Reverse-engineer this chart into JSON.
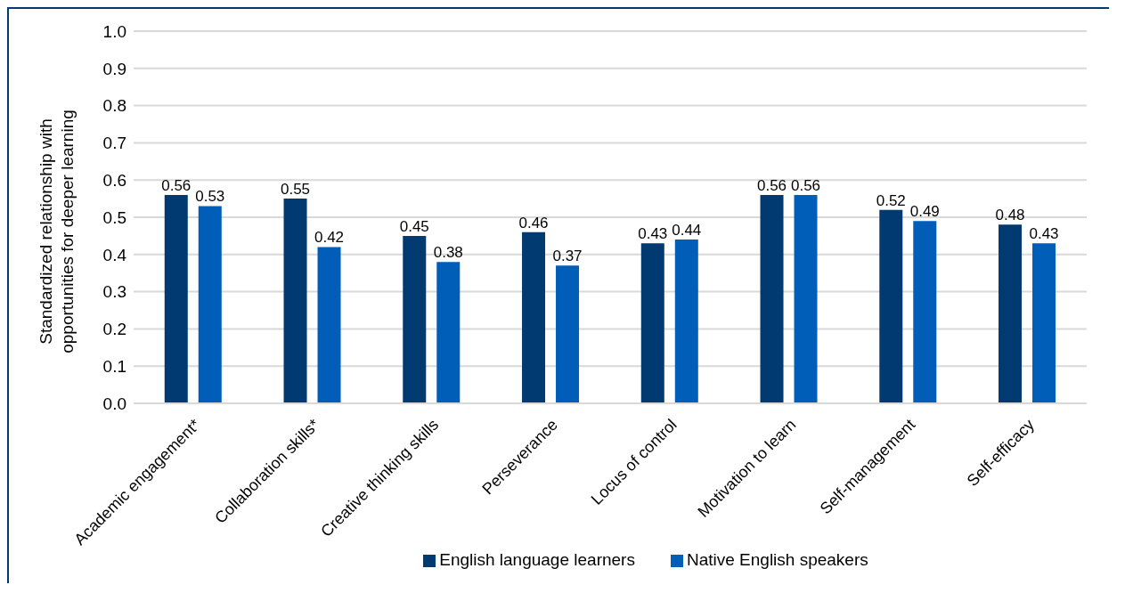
{
  "chart_data": {
    "type": "bar",
    "ylabel": "Standardized relationship with opportunities for deeper learning",
    "categories": [
      "Academic engagement*",
      "Collaboration skills*",
      "Creative thinking skills",
      "Perseverance",
      "Locus of control",
      "Motivation to learn",
      "Self-management",
      "Self-efficacy"
    ],
    "series": [
      {
        "name": "English language learners",
        "color": "#003a70",
        "values": [
          0.56,
          0.55,
          0.45,
          0.46,
          0.43,
          0.56,
          0.52,
          0.48
        ]
      },
      {
        "name": "Native English speakers",
        "color": "#005eb8",
        "values": [
          0.53,
          0.42,
          0.38,
          0.37,
          0.44,
          0.56,
          0.49,
          0.43
        ]
      }
    ],
    "ylim": [
      0,
      1
    ],
    "yticks": [
      {
        "value": 0,
        "label": "0.0"
      },
      0.1,
      0.2,
      0.3,
      0.4,
      0.5,
      0.6,
      0.7,
      0.8,
      0.9,
      {
        "value": 1,
        "label": "1.0"
      }
    ],
    "grid": "y",
    "legend": "bottom",
    "data_labels": true
  }
}
